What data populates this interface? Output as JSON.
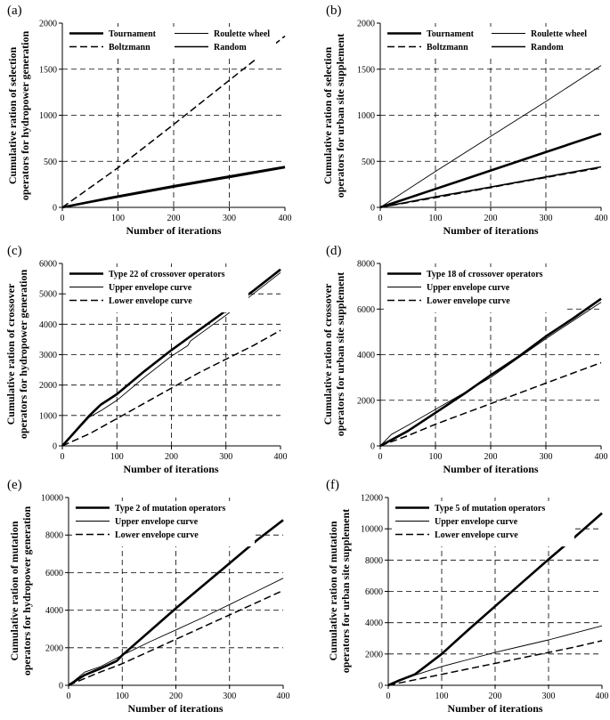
{
  "chart_data": [
    {
      "type": "line",
      "panel_label": "(a)",
      "xlabel": "Number of iterations",
      "ylabel": [
        "Cumulative ration of selection",
        "operators for hydropower generation"
      ],
      "xlim": [
        0,
        400
      ],
      "ylim": [
        0,
        2000
      ],
      "xticks": [
        0,
        100,
        200,
        300,
        400
      ],
      "yticks": [
        0,
        500,
        1000,
        1500,
        2000
      ],
      "grid_x": [
        100,
        200,
        300
      ],
      "grid_y": [
        500,
        1000,
        1500
      ],
      "legend_columns": 2,
      "legend": [
        "Tournament",
        "Roulette wheel",
        "Boltzmann",
        "Random"
      ],
      "series": [
        {
          "name": "Tournament",
          "style": "thick",
          "x": [
            0,
            100,
            200,
            300,
            400
          ],
          "y": [
            0,
            120,
            230,
            335,
            440
          ]
        },
        {
          "name": "Roulette wheel",
          "style": "thin",
          "x": [
            0,
            100,
            200,
            300,
            400
          ],
          "y": [
            0,
            115,
            225,
            330,
            435
          ]
        },
        {
          "name": "Boltzmann",
          "style": "dashed",
          "x": [
            0,
            100,
            200,
            300,
            400
          ],
          "y": [
            0,
            430,
            900,
            1380,
            1860
          ]
        },
        {
          "name": "Random",
          "style": "medium",
          "x": [
            0,
            100,
            200,
            300,
            400
          ],
          "y": [
            0,
            110,
            220,
            325,
            430
          ]
        }
      ]
    },
    {
      "type": "line",
      "panel_label": "(b)",
      "xlabel": "Number of iterations",
      "ylabel": [
        "Cumulative ration of selection",
        "operators for urban site supplement"
      ],
      "xlim": [
        0,
        400
      ],
      "ylim": [
        0,
        2000
      ],
      "xticks": [
        0,
        100,
        200,
        300,
        400
      ],
      "yticks": [
        0,
        500,
        1000,
        1500,
        2000
      ],
      "grid_x": [
        100,
        200,
        300
      ],
      "grid_y": [
        500,
        1000,
        1500
      ],
      "legend_columns": 2,
      "legend": [
        "Tournament",
        "Roulette wheel",
        "Boltzmann",
        "Random"
      ],
      "series": [
        {
          "name": "Tournament",
          "style": "thick",
          "x": [
            0,
            100,
            200,
            300,
            400
          ],
          "y": [
            0,
            200,
            400,
            600,
            800
          ]
        },
        {
          "name": "Roulette wheel",
          "style": "thin",
          "x": [
            0,
            100,
            200,
            300,
            400
          ],
          "y": [
            0,
            390,
            770,
            1150,
            1540
          ]
        },
        {
          "name": "Boltzmann",
          "style": "dashed",
          "x": [
            0,
            100,
            200,
            300,
            400
          ],
          "y": [
            0,
            105,
            215,
            325,
            430
          ]
        },
        {
          "name": "Random",
          "style": "medium",
          "x": [
            0,
            100,
            200,
            300,
            400
          ],
          "y": [
            0,
            115,
            220,
            330,
            440
          ]
        }
      ]
    },
    {
      "type": "line",
      "panel_label": "(c)",
      "xlabel": "Number of iterations",
      "ylabel": [
        "Cumulative ration of crossover",
        "operators for hydropower generation"
      ],
      "xlim": [
        0,
        400
      ],
      "ylim": [
        0,
        6000
      ],
      "xticks": [
        0,
        100,
        200,
        300,
        400
      ],
      "yticks": [
        0,
        1000,
        2000,
        3000,
        4000,
        5000,
        6000
      ],
      "grid_x": [
        100,
        200,
        300
      ],
      "grid_y": [
        1000,
        2000,
        3000,
        4000,
        5000
      ],
      "legend_columns": 1,
      "legend": [
        "Type 22 of crossover operators",
        "Upper envelope curve",
        "Lower envelope curve"
      ],
      "series": [
        {
          "name": "Type 22 of crossover operators",
          "style": "thick",
          "x": [
            0,
            20,
            50,
            70,
            100,
            150,
            200,
            250,
            300,
            350,
            400
          ],
          "y": [
            0,
            400,
            1000,
            1350,
            1700,
            2450,
            3150,
            3800,
            4450,
            5100,
            5800
          ]
        },
        {
          "name": "Upper envelope curve",
          "style": "thin",
          "x": [
            0,
            20,
            50,
            70,
            100,
            150,
            200,
            230,
            235,
            250,
            300,
            350,
            400
          ],
          "y": [
            0,
            380,
            950,
            1150,
            1500,
            2250,
            2950,
            3300,
            3450,
            3650,
            4300,
            5000,
            5700
          ]
        },
        {
          "name": "Lower envelope curve",
          "style": "dashed",
          "x": [
            0,
            50,
            100,
            150,
            200,
            250,
            300,
            350,
            400
          ],
          "y": [
            0,
            400,
            900,
            1400,
            1900,
            2400,
            2850,
            3300,
            3800
          ]
        }
      ]
    },
    {
      "type": "line",
      "panel_label": "(d)",
      "xlabel": "Number of iterations",
      "ylabel": [
        "Cumulative ration of crossover",
        "operators for urban site supplement"
      ],
      "xlim": [
        0,
        400
      ],
      "ylim": [
        0,
        8000
      ],
      "xticks": [
        0,
        100,
        200,
        300,
        400
      ],
      "yticks": [
        0,
        2000,
        4000,
        6000,
        8000
      ],
      "grid_x": [
        100,
        200,
        300
      ],
      "grid_y": [
        2000,
        4000,
        6000
      ],
      "legend_columns": 1,
      "legend": [
        "Type 18 of crossover operators",
        "Upper envelope curve",
        "Lower envelope curve"
      ],
      "series": [
        {
          "name": "Type 18 of crossover operators",
          "style": "thick",
          "x": [
            0,
            50,
            100,
            150,
            200,
            250,
            300,
            350,
            400
          ],
          "y": [
            0,
            650,
            1450,
            2250,
            3100,
            3900,
            4800,
            5600,
            6450
          ]
        },
        {
          "name": "Upper envelope curve",
          "style": "thin",
          "x": [
            0,
            20,
            50,
            100,
            150,
            200,
            250,
            300,
            350,
            400
          ],
          "y": [
            0,
            500,
            900,
            1600,
            2300,
            3000,
            3850,
            4700,
            5500,
            6300
          ]
        },
        {
          "name": "Lower envelope curve",
          "style": "dashed",
          "x": [
            0,
            50,
            100,
            150,
            200,
            250,
            300,
            350,
            400
          ],
          "y": [
            0,
            450,
            950,
            1400,
            1850,
            2300,
            2750,
            3200,
            3650
          ]
        }
      ]
    },
    {
      "type": "line",
      "panel_label": "(e)",
      "xlabel": "Number of iterations",
      "ylabel": [
        "Cumulative ration of mutation",
        "operators for hydropower generation"
      ],
      "xlim": [
        0,
        400
      ],
      "ylim": [
        0,
        10000
      ],
      "xticks": [
        0,
        100,
        200,
        300,
        400
      ],
      "yticks": [
        0,
        2000,
        4000,
        6000,
        8000,
        10000
      ],
      "grid_x": [
        100,
        200,
        300
      ],
      "grid_y": [
        2000,
        4000,
        6000,
        8000
      ],
      "legend_columns": 1,
      "legend": [
        "Type 2 of mutation operators",
        "Upper envelope curve",
        "Lower envelope curve"
      ],
      "series": [
        {
          "name": "Type 2 of mutation operators",
          "style": "thick",
          "x": [
            0,
            30,
            60,
            90,
            100,
            150,
            200,
            250,
            300,
            350,
            400
          ],
          "y": [
            0,
            550,
            900,
            1300,
            1600,
            2850,
            4100,
            5300,
            6500,
            7700,
            8800
          ]
        },
        {
          "name": "Upper envelope curve",
          "style": "thin",
          "x": [
            0,
            30,
            60,
            100,
            150,
            200,
            250,
            300,
            350,
            400
          ],
          "y": [
            0,
            700,
            1000,
            1600,
            2300,
            2950,
            3600,
            4300,
            5000,
            5700
          ]
        },
        {
          "name": "Lower envelope curve",
          "style": "dashed",
          "x": [
            0,
            50,
            100,
            150,
            200,
            250,
            300,
            350,
            400
          ],
          "y": [
            0,
            600,
            1150,
            1800,
            2450,
            3100,
            3750,
            4400,
            5050
          ]
        }
      ]
    },
    {
      "type": "line",
      "panel_label": "(f)",
      "xlabel": "Number of iterations",
      "ylabel": [
        "Cumulative ration of mutation",
        "operators for urban site supplement"
      ],
      "xlim": [
        0,
        400
      ],
      "ylim": [
        0,
        12000
      ],
      "xticks": [
        0,
        100,
        200,
        300,
        400
      ],
      "yticks": [
        0,
        2000,
        4000,
        6000,
        8000,
        10000,
        12000
      ],
      "grid_x": [
        100,
        200,
        300
      ],
      "grid_y": [
        2000,
        4000,
        6000,
        8000,
        10000
      ],
      "legend_columns": 1,
      "legend": [
        "Type 5 of mutation operators",
        "Upper envelope curve",
        "Lower envelope curve"
      ],
      "series": [
        {
          "name": "Type 5 of mutation operators",
          "style": "thick",
          "x": [
            0,
            20,
            50,
            100,
            150,
            200,
            250,
            300,
            350,
            400
          ],
          "y": [
            0,
            300,
            700,
            2000,
            3550,
            5050,
            6550,
            8050,
            9500,
            11000
          ]
        },
        {
          "name": "Upper envelope curve",
          "style": "thin",
          "x": [
            0,
            20,
            50,
            100,
            150,
            200,
            250,
            300,
            350,
            400
          ],
          "y": [
            0,
            350,
            650,
            1200,
            1650,
            2100,
            2500,
            2900,
            3350,
            3800
          ]
        },
        {
          "name": "Lower envelope curve",
          "style": "dashed",
          "x": [
            0,
            50,
            100,
            150,
            200,
            250,
            300,
            350,
            400
          ],
          "y": [
            0,
            350,
            700,
            1050,
            1400,
            1750,
            2100,
            2450,
            2850
          ]
        }
      ]
    }
  ]
}
